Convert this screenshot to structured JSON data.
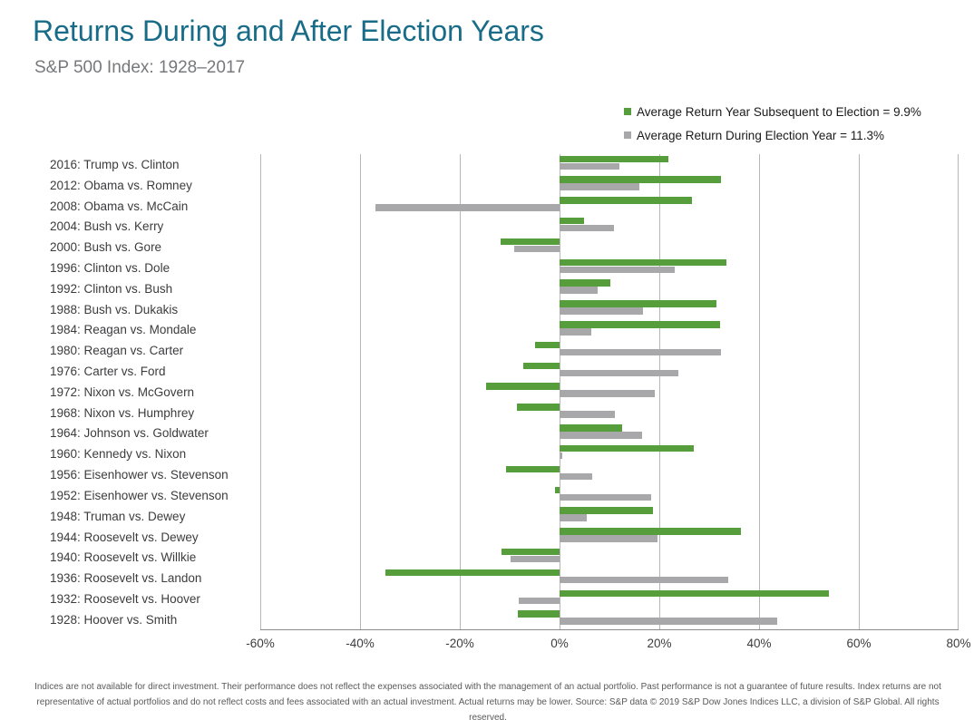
{
  "header": {
    "title": "Returns During and After Election Years",
    "subtitle": "S&P 500 Index: 1928–2017",
    "title_color": "#186c87"
  },
  "legend": {
    "items": [
      {
        "label": "Average Return Year Subsequent to Election = 9.9%",
        "color": "#569e3c"
      },
      {
        "label": "Average Return During Election Year = 11.3%",
        "color": "#a8a8aa"
      }
    ]
  },
  "chart_data": {
    "type": "bar",
    "orientation": "horizontal",
    "title": "Returns During and After Election Years",
    "subtitle": "S&P 500 Index: 1928–2017",
    "xlabel": "",
    "ylabel": "",
    "xlim": [
      -60,
      80
    ],
    "grid": "vertical",
    "legend_position": "top-right",
    "x_ticks": [
      {
        "value": -60,
        "label": "-60%"
      },
      {
        "value": -40,
        "label": "-40%"
      },
      {
        "value": -20,
        "label": "-20%"
      },
      {
        "value": 0,
        "label": "0%"
      },
      {
        "value": 20,
        "label": "20%"
      },
      {
        "value": 40,
        "label": "40%"
      },
      {
        "value": 60,
        "label": "60%"
      },
      {
        "value": 80,
        "label": "80%"
      }
    ],
    "years": [
      2016,
      2012,
      2008,
      2004,
      2000,
      1996,
      1992,
      1988,
      1984,
      1980,
      1976,
      1972,
      1968,
      1964,
      1960,
      1956,
      1952,
      1948,
      1944,
      1940,
      1936,
      1932,
      1928
    ],
    "categories": [
      "2016: Trump vs. Clinton",
      "2012: Obama vs. Romney",
      "2008: Obama vs. McCain",
      "2004: Bush vs. Kerry",
      "2000: Bush vs. Gore",
      "1996: Clinton vs. Dole",
      "1992: Clinton vs. Bush",
      "1988: Bush vs. Dukakis",
      "1984: Reagan vs. Mondale",
      "1980: Reagan vs. Carter",
      "1976: Carter vs. Ford",
      "1972: Nixon vs. McGovern",
      "1968: Nixon vs. Humphrey",
      "1964: Johnson vs. Goldwater",
      "1960: Kennedy vs. Nixon",
      "1956: Eisenhower vs. Stevenson",
      "1952: Eisenhower vs. Stevenson",
      "1948: Truman vs. Dewey",
      "1944: Roosevelt vs. Dewey",
      "1940: Roosevelt vs. Willkie",
      "1936: Roosevelt vs. Landon",
      "1932: Roosevelt vs. Hoover",
      "1928: Hoover vs. Smith"
    ],
    "series": [
      {
        "name": "Average Return Year Subsequent to Election",
        "average": 9.9,
        "color": "#569e3c",
        "values": [
          21.8,
          32.4,
          26.5,
          4.9,
          -11.9,
          33.4,
          10.1,
          31.5,
          32.2,
          -4.9,
          -7.2,
          -14.7,
          -8.5,
          12.5,
          26.9,
          -10.8,
          -1.0,
          18.8,
          36.4,
          -11.6,
          -35.0,
          54.0,
          -8.4
        ]
      },
      {
        "name": "Average Return During Election Year",
        "average": 11.3,
        "color": "#a8a8aa",
        "values": [
          12.0,
          16.0,
          -37.0,
          10.9,
          -9.1,
          23.0,
          7.6,
          16.8,
          6.3,
          32.4,
          23.8,
          19.0,
          11.1,
          16.5,
          0.5,
          6.6,
          18.4,
          5.5,
          19.7,
          -9.8,
          33.9,
          -8.2,
          43.6
        ]
      }
    ]
  },
  "footer": {
    "disclaimer": "Indices are not available for direct investment. Their performance does not reflect the expenses associated with the management of an actual portfolio. Past performance is not a guarantee of future results. Index returns are not representative of actual portfolios and do not reflect costs and fees associated with an actual investment. Actual returns may be lower. Source: S&P data © 2019 S&P Dow Jones Indices LLC, a division of S&P Global. All rights reserved."
  }
}
